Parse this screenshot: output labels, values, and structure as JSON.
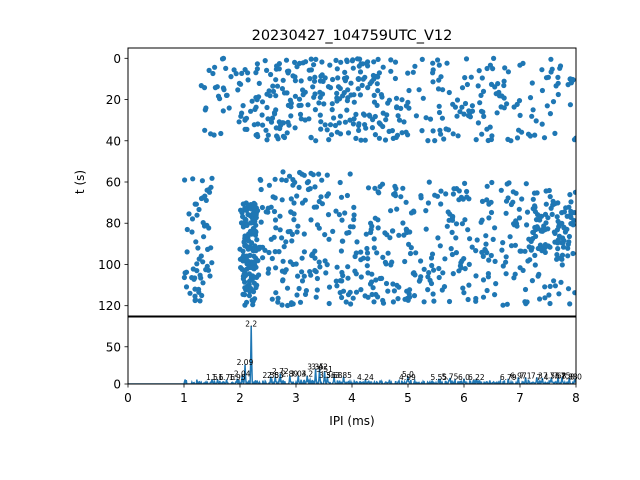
{
  "chart_data": [
    {
      "type": "scatter",
      "title": "20230427_104759UTC_V12",
      "xlabel": "",
      "ylabel": "t (s)",
      "xlim": [
        0,
        8
      ],
      "ylim": [
        125,
        -5
      ],
      "y_inverted": true,
      "yticks": [
        0,
        20,
        40,
        60,
        80,
        100,
        120
      ],
      "color": "#1f77b4",
      "generated": {
        "seed": 12345,
        "x_min": 1.0,
        "x_max": 8.0,
        "bands": [
          {
            "x0": 1.0,
            "x1": 1.5,
            "y0": 58,
            "y1": 120,
            "n": 60
          },
          {
            "x0": 1.3,
            "x1": 2.0,
            "y0": 0,
            "y1": 40,
            "n": 30
          },
          {
            "x0": 2.0,
            "x1": 2.3,
            "y0": 70,
            "y1": 120,
            "n": 150
          },
          {
            "x0": 2.0,
            "x1": 3.0,
            "y0": 0,
            "y1": 40,
            "n": 90
          },
          {
            "x0": 2.3,
            "x1": 4.0,
            "y0": 55,
            "y1": 120,
            "n": 170
          },
          {
            "x0": 3.0,
            "x1": 4.5,
            "y0": 0,
            "y1": 40,
            "n": 130
          },
          {
            "x0": 4.0,
            "x1": 8.0,
            "y0": 0,
            "y1": 40,
            "n": 190
          },
          {
            "x0": 4.0,
            "x1": 8.0,
            "y0": 60,
            "y1": 120,
            "n": 330
          },
          {
            "x0": 7.2,
            "x1": 8.0,
            "y0": 70,
            "y1": 95,
            "n": 60
          }
        ]
      }
    },
    {
      "type": "line",
      "xlabel": "IPI (ms)",
      "ylabel": "",
      "xlim": [
        0,
        8
      ],
      "ylim": [
        0,
        90
      ],
      "xticks": [
        0,
        1,
        2,
        3,
        4,
        5,
        6,
        7,
        8
      ],
      "yticks": [
        0,
        50
      ],
      "color": "#1f77b4",
      "peaks": [
        {
          "x": 1.5,
          "y": 6
        },
        {
          "x": 1.6,
          "y": 6
        },
        {
          "x": 1.76,
          "y": 6
        },
        {
          "x": 1.95,
          "y": 7
        },
        {
          "x": 2.04,
          "y": 12
        },
        {
          "x": 2.09,
          "y": 26
        },
        {
          "x": 2.2,
          "y": 78
        },
        {
          "x": 2.55,
          "y": 10
        },
        {
          "x": 2.63,
          "y": 10
        },
        {
          "x": 2.72,
          "y": 14
        },
        {
          "x": 2.89,
          "y": 11
        },
        {
          "x": 3.04,
          "y": 11
        },
        {
          "x": 3.2,
          "y": 11
        },
        {
          "x": 3.35,
          "y": 20
        },
        {
          "x": 3.42,
          "y": 20
        },
        {
          "x": 3.51,
          "y": 17
        },
        {
          "x": 3.56,
          "y": 10
        },
        {
          "x": 3.68,
          "y": 10
        },
        {
          "x": 3.85,
          "y": 10
        },
        {
          "x": 4.24,
          "y": 6
        },
        {
          "x": 4.99,
          "y": 6
        },
        {
          "x": 5.0,
          "y": 10
        },
        {
          "x": 5.55,
          "y": 7
        },
        {
          "x": 5.75,
          "y": 8
        },
        {
          "x": 6.0,
          "y": 7
        },
        {
          "x": 6.22,
          "y": 7
        },
        {
          "x": 6.79,
          "y": 7
        },
        {
          "x": 6.97,
          "y": 9
        },
        {
          "x": 7.1,
          "y": 9
        },
        {
          "x": 7.3,
          "y": 9
        },
        {
          "x": 7.4,
          "y": 8
        },
        {
          "x": 7.56,
          "y": 9
        },
        {
          "x": 7.68,
          "y": 9
        },
        {
          "x": 7.75,
          "y": 9
        },
        {
          "x": 7.88,
          "y": 8
        },
        {
          "x": 8.0,
          "y": 8
        }
      ],
      "labels": [
        {
          "x": 1.5,
          "y": 4,
          "text": "1.5"
        },
        {
          "x": 1.6,
          "y": 4,
          "text": "1.6"
        },
        {
          "x": 1.76,
          "y": 4,
          "text": "1.76"
        },
        {
          "x": 1.95,
          "y": 4,
          "text": "1.95"
        },
        {
          "x": 2.04,
          "y": 9,
          "text": "2.04"
        },
        {
          "x": 2.09,
          "y": 24,
          "text": "2.09"
        },
        {
          "x": 2.2,
          "y": 76,
          "text": "2.2"
        },
        {
          "x": 2.55,
          "y": 7,
          "text": "2.55"
        },
        {
          "x": 2.63,
          "y": 7,
          "text": "2.63"
        },
        {
          "x": 2.72,
          "y": 12,
          "text": "2.72"
        },
        {
          "x": 2.89,
          "y": 9,
          "text": "2.89"
        },
        {
          "x": 3.04,
          "y": 9,
          "text": "3.04"
        },
        {
          "x": 3.2,
          "y": 9,
          "text": "3.2"
        },
        {
          "x": 3.35,
          "y": 18,
          "text": "3.35"
        },
        {
          "x": 3.42,
          "y": 18,
          "text": "3.42"
        },
        {
          "x": 3.51,
          "y": 15,
          "text": "3.51"
        },
        {
          "x": 3.56,
          "y": 7,
          "text": "3.56"
        },
        {
          "x": 3.68,
          "y": 7,
          "text": "3.68"
        },
        {
          "x": 3.85,
          "y": 7,
          "text": "3.85"
        },
        {
          "x": 4.24,
          "y": 4,
          "text": "4.24"
        },
        {
          "x": 4.99,
          "y": 4,
          "text": "4.99"
        },
        {
          "x": 5.0,
          "y": 8,
          "text": "5.0"
        },
        {
          "x": 5.55,
          "y": 4,
          "text": "5.55"
        },
        {
          "x": 5.75,
          "y": 5,
          "text": "5.75"
        },
        {
          "x": 6.0,
          "y": 4,
          "text": "6.0"
        },
        {
          "x": 6.22,
          "y": 4,
          "text": "6.22"
        },
        {
          "x": 6.79,
          "y": 4,
          "text": "6.79"
        },
        {
          "x": 6.97,
          "y": 6,
          "text": "6.97"
        },
        {
          "x": 7.1,
          "y": 6,
          "text": "7.1"
        },
        {
          "x": 7.3,
          "y": 6,
          "text": "7.3"
        },
        {
          "x": 7.4,
          "y": 4,
          "text": "7.4"
        },
        {
          "x": 7.56,
          "y": 6,
          "text": "7.56"
        },
        {
          "x": 7.68,
          "y": 6,
          "text": "7.68"
        },
        {
          "x": 7.75,
          "y": 6,
          "text": "7.75"
        },
        {
          "x": 7.88,
          "y": 5,
          "text": "7.88"
        },
        {
          "x": 8.0,
          "y": 5,
          "text": "8.0"
        }
      ]
    }
  ]
}
